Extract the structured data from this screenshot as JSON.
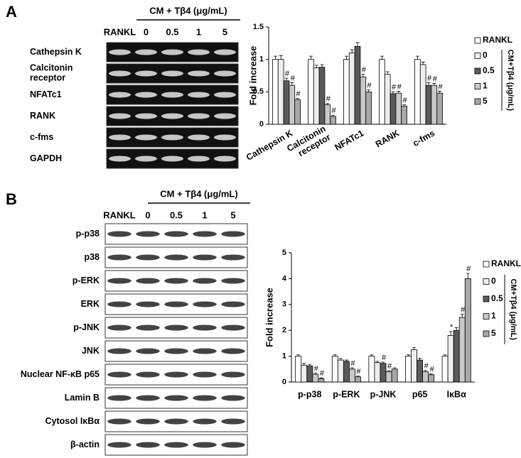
{
  "panel_a": {
    "label": "A",
    "treatment": "CM + Tβ4 (μg/mL)",
    "lanes": [
      "RANKL",
      "0",
      "0.5",
      "1",
      "5"
    ],
    "rows": [
      "Cathepsin K",
      "Calcitonin\nreceptor",
      "NFATc1",
      "RANK",
      "c-fms",
      "GAPDH"
    ]
  },
  "panel_b": {
    "label": "B",
    "treatment": "CM + Tβ4 (μg/mL)",
    "lanes": [
      "RANKL",
      "0",
      "0.5",
      "1",
      "5"
    ],
    "rows": [
      "p-p38",
      "p38",
      "p-ERK",
      "ERK",
      "p-JNK",
      "JNK",
      "Nuclear NF-κB p65",
      "Lamin B",
      "Cytosol IκBα",
      "β-actin"
    ]
  },
  "chart_data": [
    {
      "type": "bar",
      "ylabel": "Fold increase",
      "legend_title": "CM+Tβ4 (μg/mL)",
      "categories": [
        "Cathepsin K",
        "Calcitonin\nreceptor",
        "NFATc1",
        "RANK",
        "c-fms"
      ],
      "ylim": [
        0,
        1.5
      ],
      "yticks": [
        0,
        0.5,
        1,
        1.5
      ],
      "series": [
        {
          "name": "RANKL",
          "color": "#ffffff",
          "values": [
            1.0,
            1.0,
            1.0,
            1.0,
            1.0
          ],
          "errors": [
            0.05,
            0.05,
            0.05,
            0.05,
            0.05
          ],
          "marks": [
            null,
            null,
            null,
            null,
            null
          ]
        },
        {
          "name": "0",
          "color": "#eeeeee",
          "values": [
            1.0,
            0.87,
            1.1,
            0.77,
            0.92
          ],
          "errors": [
            0.06,
            0.04,
            0.05,
            0.04,
            0.04
          ],
          "marks": [
            null,
            null,
            null,
            null,
            null
          ]
        },
        {
          "name": "0.5",
          "color": "#5a5a5a",
          "values": [
            0.67,
            0.88,
            1.2,
            0.47,
            0.6
          ],
          "errors": [
            0.04,
            0.04,
            0.06,
            0.03,
            0.04
          ],
          "marks": [
            "#",
            null,
            null,
            "#",
            "#"
          ]
        },
        {
          "name": "1",
          "color": "#c8c8c8",
          "values": [
            0.6,
            0.3,
            0.73,
            0.48,
            0.6
          ],
          "errors": [
            0.04,
            0.02,
            0.04,
            0.03,
            0.03
          ],
          "marks": [
            "#",
            "#",
            "#",
            "#",
            "#"
          ]
        },
        {
          "name": "5",
          "color": "#a8a8a8",
          "values": [
            0.38,
            0.12,
            0.5,
            0.28,
            0.48
          ],
          "errors": [
            0.02,
            0.02,
            0.03,
            0.02,
            0.03
          ],
          "marks": [
            "#",
            "#",
            "#",
            "#",
            "#"
          ]
        }
      ]
    },
    {
      "type": "bar",
      "ylabel": "Fold increase",
      "legend_title": "CM+Tβ4 (μg/mL)",
      "categories": [
        "p-p38",
        "p-ERK",
        "p-JNK",
        "p65",
        "IκBα"
      ],
      "ylim": [
        0,
        5
      ],
      "yticks": [
        0,
        1,
        2,
        3,
        4,
        5
      ],
      "series": [
        {
          "name": "RANKL",
          "color": "#ffffff",
          "values": [
            1.0,
            1.0,
            1.0,
            1.0,
            1.0
          ],
          "errors": [
            0.05,
            0.05,
            0.05,
            0.05,
            0.05
          ],
          "marks": [
            null,
            null,
            null,
            null,
            null
          ]
        },
        {
          "name": "0",
          "color": "#eeeeee",
          "values": [
            0.65,
            0.85,
            0.75,
            1.25,
            1.8
          ],
          "errors": [
            0.07,
            0.06,
            0.05,
            0.08,
            0.15
          ],
          "marks": [
            null,
            null,
            null,
            null,
            "*"
          ]
        },
        {
          "name": "0.5",
          "color": "#5a5a5a",
          "values": [
            0.62,
            0.8,
            0.72,
            0.85,
            2.0
          ],
          "errors": [
            0.06,
            0.05,
            0.05,
            0.07,
            0.1
          ],
          "marks": [
            null,
            null,
            "#",
            null,
            null
          ]
        },
        {
          "name": "1",
          "color": "#c8c8c8",
          "values": [
            0.3,
            0.5,
            0.4,
            0.4,
            2.5
          ],
          "errors": [
            0.04,
            0.05,
            0.04,
            0.05,
            0.12
          ],
          "marks": [
            "#",
            "#",
            "#",
            "#",
            "#"
          ]
        },
        {
          "name": "5",
          "color": "#a8a8a8",
          "values": [
            0.13,
            0.2,
            0.5,
            0.28,
            4.0
          ],
          "errors": [
            0.03,
            0.03,
            0.05,
            0.04,
            0.2
          ],
          "marks": [
            "#",
            "#",
            null,
            "#",
            "#"
          ]
        }
      ]
    }
  ]
}
